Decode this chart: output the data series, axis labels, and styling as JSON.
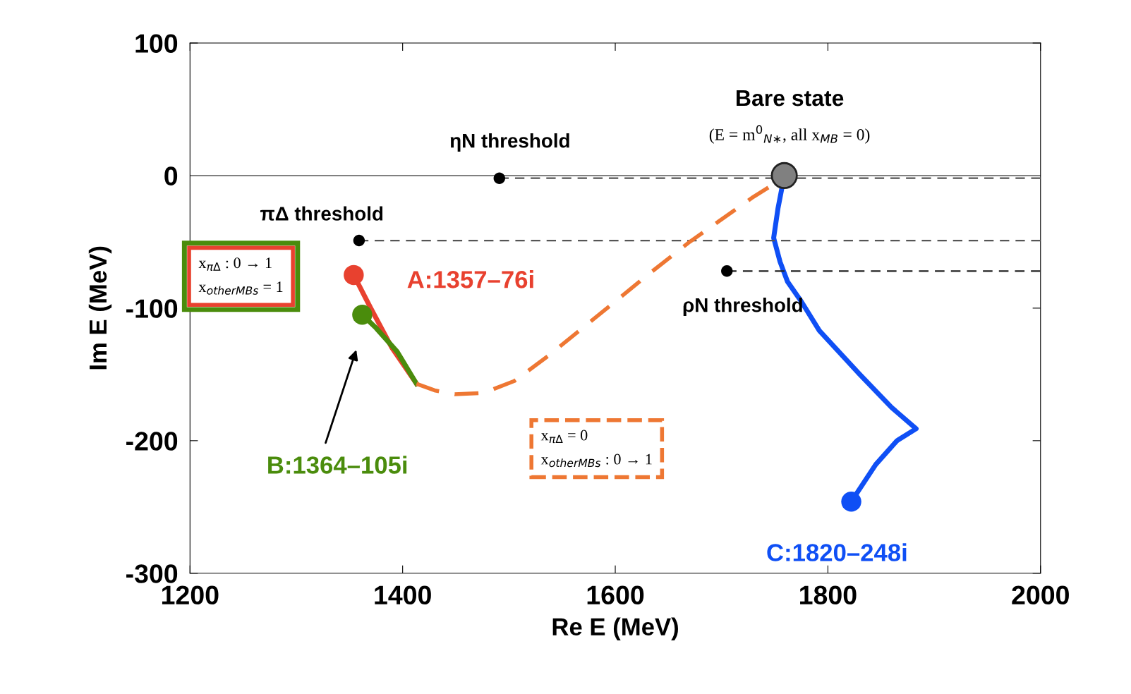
{
  "chart_data": {
    "type": "line",
    "xlabel": "Re E (MeV)",
    "ylabel": "Im E (MeV)",
    "xlim": [
      1200,
      2000
    ],
    "xticks": [
      1200,
      1400,
      1600,
      1800,
      2000
    ],
    "ylim": [
      -300,
      100
    ],
    "yticks": [
      -300,
      -200,
      -100,
      0,
      100
    ],
    "grid": false,
    "legend": false,
    "marker": "none",
    "ref_lines": [
      {
        "axis": "y",
        "value": 0,
        "color": "#808080",
        "line_style": "solid"
      }
    ],
    "series": [
      {
        "type": "line",
        "color": "#555555",
        "line_style": "dashed",
        "x": [
          1491,
          2000
        ],
        "values": [
          -2,
          -2
        ]
      },
      {
        "type": "line",
        "color": "#555555",
        "line_style": "dashed",
        "x": [
          1359,
          2000
        ],
        "values": [
          -49,
          -49
        ]
      },
      {
        "type": "line",
        "color": "#222222",
        "line_style": "dashed",
        "x": [
          1705,
          2000
        ],
        "values": [
          -72,
          -72
        ]
      },
      {
        "type": "scatter",
        "color": "#000000",
        "marker": "circle",
        "x": [
          1491,
          1359,
          1705
        ],
        "values": [
          -2,
          -49,
          -72
        ]
      },
      {
        "type": "line",
        "color": "#e8412f",
        "line_style": "solid",
        "x": [
          1354,
          1370,
          1390,
          1413
        ],
        "values": [
          -75,
          -100,
          -130,
          -157
        ]
      },
      {
        "type": "line",
        "color": "#4a8c0c",
        "line_style": "solid",
        "x": [
          1362,
          1375,
          1395,
          1413
        ],
        "values": [
          -105,
          -115,
          -133,
          -157
        ]
      },
      {
        "color": "#ee7733",
        "line_style": "dashed",
        "x": [
          1413,
          1430,
          1449,
          1476,
          1505,
          1537,
          1580,
          1632,
          1670,
          1700,
          1730,
          1744
        ],
        "values": [
          -157,
          -162,
          -165,
          -164,
          -155,
          -136,
          -108,
          -74,
          -50,
          -33,
          -16,
          -9
        ]
      },
      {
        "color": "#0f4ff5",
        "line_style": "solid",
        "x": [
          1759,
          1753,
          1749,
          1755,
          1762,
          1775,
          1792,
          1830,
          1860,
          1883,
          1865,
          1845,
          1822
        ],
        "values": [
          0,
          -25,
          -47,
          -65,
          -80,
          -95,
          -117,
          -150,
          -175,
          -191,
          -200,
          -218,
          -246
        ]
      },
      {
        "type": "scatter",
        "name": "A:1357–76i",
        "color": "#e8412f",
        "marker": "circle",
        "x": [
          1354
        ],
        "values": [
          -75
        ]
      },
      {
        "type": "scatter",
        "name": "B:1364–105i",
        "color": "#4a8c0c",
        "marker": "circle",
        "x": [
          1362
        ],
        "values": [
          -105
        ]
      },
      {
        "type": "scatter",
        "name": "C:1820–248i",
        "color": "#0f4ff5",
        "marker": "circle",
        "x": [
          1822
        ],
        "values": [
          -246
        ]
      },
      {
        "type": "scatter",
        "color": "#808080",
        "marker": "circle",
        "x": [
          1759
        ],
        "values": [
          0
        ]
      }
    ],
    "annotations": [
      "Bare state",
      "(E = m$^{0}$$_{N∗}$, all x$_{MB}$ = 0)",
      {
        "text": "ηN threshold",
        "x": 1491,
        "y": -2
      },
      {
        "text": "πΔ threshold",
        "x": 1359,
        "y": -49
      },
      {
        "text": "ρN threshold",
        "x": 1705,
        "y": -72
      },
      "x$_{πΔ}$ : 0 → 1\nx$_{otherMBs}$ = 1",
      "x$_{πΔ}$ = 0\nx$_{otherMBs}$ : 0 → 1"
    ]
  }
}
